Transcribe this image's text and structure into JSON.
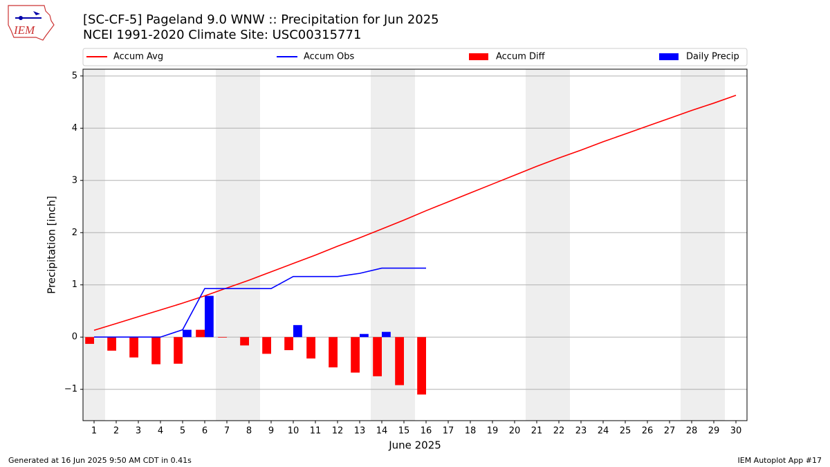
{
  "logo_text": "IEM",
  "footer_left": "Generated at 16 Jun 2025 9:50 AM CDT in 0.41s",
  "footer_right": "IEM Autoplot App #17",
  "chart_data": {
    "type": "bar",
    "title": "[SC-CF-5] Pageland 9.0 WNW :: Precipitation for Jun 2025",
    "subtitle": "NCEI 1991-2020 Climate Site: USC00315771",
    "x_label": "June 2025",
    "y_label": "Precipitation [inch]",
    "x": [
      1,
      2,
      3,
      4,
      5,
      6,
      7,
      8,
      9,
      10,
      11,
      12,
      13,
      14,
      15,
      16,
      17,
      18,
      19,
      20,
      21,
      22,
      23,
      24,
      25,
      26,
      27,
      28,
      29,
      30
    ],
    "series": [
      {
        "name": "Accum Avg",
        "type": "line",
        "color": "#ff0000",
        "values": [
          0.13,
          0.26,
          0.39,
          0.52,
          0.65,
          0.79,
          0.94,
          1.09,
          1.25,
          1.41,
          1.57,
          1.74,
          1.9,
          2.07,
          2.24,
          2.42,
          2.59,
          2.76,
          2.93,
          3.1,
          3.27,
          3.43,
          3.58,
          3.74,
          3.89,
          4.04,
          4.19,
          4.34,
          4.48,
          4.63
        ]
      },
      {
        "name": "Accum Obs",
        "type": "line",
        "color": "#0000ff",
        "values": [
          0,
          0,
          0,
          0,
          0.14,
          0.93,
          0.93,
          0.93,
          0.93,
          1.16,
          1.16,
          1.16,
          1.22,
          1.32,
          1.32,
          1.32,
          null,
          null,
          null,
          null,
          null,
          null,
          null,
          null,
          null,
          null,
          null,
          null,
          null,
          null
        ]
      },
      {
        "name": "Accum Diff",
        "type": "bar",
        "color": "#ff0000",
        "offset": -0.4,
        "values": [
          -0.13,
          -0.26,
          -0.39,
          -0.52,
          -0.51,
          0.14,
          -0.01,
          -0.16,
          -0.32,
          -0.25,
          -0.41,
          -0.58,
          -0.68,
          -0.75,
          -0.92,
          -1.1,
          null,
          null,
          null,
          null,
          null,
          null,
          null,
          null,
          null,
          null,
          null,
          null,
          null,
          null
        ]
      },
      {
        "name": "Daily Precip",
        "type": "bar",
        "color": "#0000ff",
        "offset": 0,
        "values": [
          0,
          0,
          0,
          0,
          0.14,
          0.79,
          0,
          0,
          0,
          0.23,
          0,
          0,
          0.06,
          0.1,
          0,
          0,
          null,
          null,
          null,
          null,
          null,
          null,
          null,
          null,
          null,
          null,
          null,
          null,
          null,
          null
        ]
      }
    ],
    "bar_width": 0.4,
    "shaded_days": [
      1,
      7,
      8,
      14,
      15,
      21,
      22,
      28,
      29
    ],
    "xlim": [
      0.5,
      30.5
    ],
    "ylim": [
      -1.6,
      5.13
    ],
    "xticks": [
      1,
      2,
      3,
      4,
      5,
      6,
      7,
      8,
      9,
      10,
      11,
      12,
      13,
      14,
      15,
      16,
      17,
      18,
      19,
      20,
      21,
      22,
      23,
      24,
      25,
      26,
      27,
      28,
      29,
      30
    ],
    "yticks": [
      {
        "value": -1,
        "label": "−1"
      },
      0,
      1,
      2,
      3,
      4,
      5
    ],
    "grid": true
  }
}
